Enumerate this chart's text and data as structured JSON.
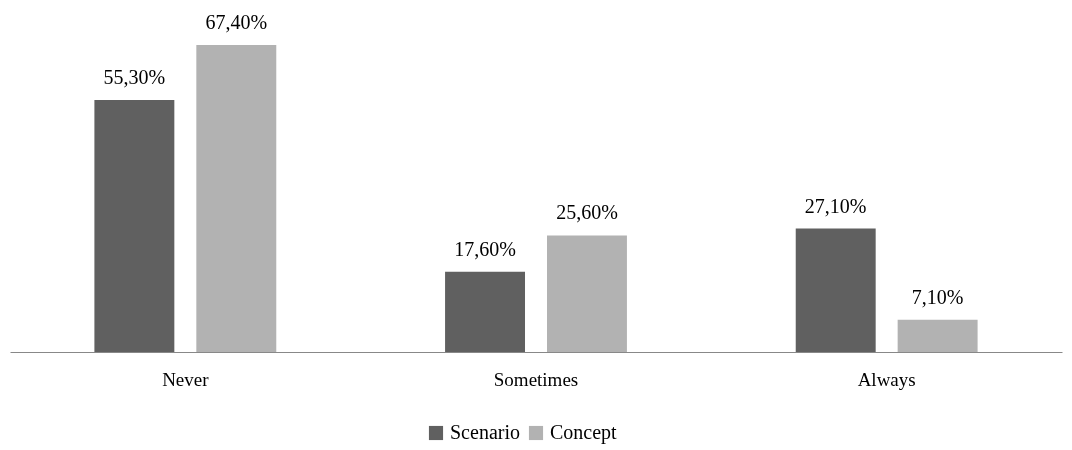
{
  "chart_data": {
    "type": "bar",
    "categories": [
      "Never",
      "Sometimes",
      "Always"
    ],
    "series": [
      {
        "name": "Scenario",
        "color": "#606060",
        "values": [
          55.3,
          17.6,
          27.1
        ],
        "value_labels": [
          "55,30%",
          "17,60%",
          "27,10%"
        ]
      },
      {
        "name": "Concept",
        "color": "#b2b2b2",
        "values": [
          67.4,
          25.6,
          7.1
        ],
        "value_labels": [
          "67,40%",
          "25,60%",
          "7,10%"
        ]
      }
    ],
    "legend": "bottom",
    "grid": false
  }
}
